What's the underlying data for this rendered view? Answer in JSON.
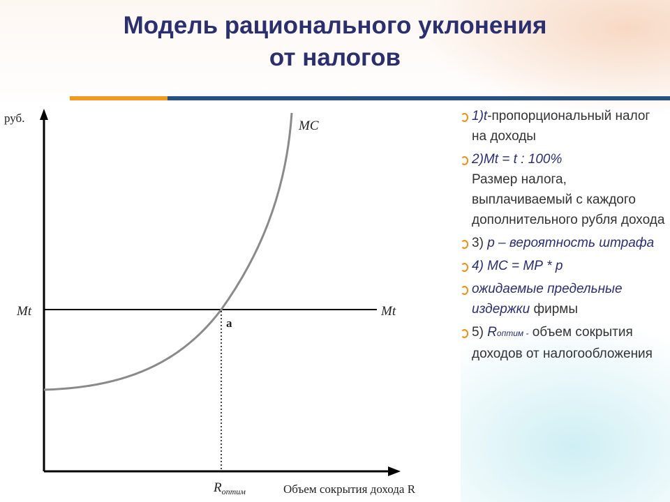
{
  "title": {
    "line1": "Модель рационального уклонения",
    "line2": "от налогов"
  },
  "colors": {
    "title": "#2b2f6e",
    "accent_orange": "#f39a1e",
    "accent_blue": "#27527f",
    "curve": "#8a8a8a"
  },
  "diagram": {
    "y_axis_label": "руб.",
    "x_axis_label": "Объем сокрытия дохода R",
    "curve_label": "MC",
    "line_label_left": "Mt",
    "line_label_right": "Mt",
    "point_label": "a",
    "x_tick_label_main": "R",
    "x_tick_label_sub": "оптим"
  },
  "bullets": {
    "b1_italic": "1)t",
    "b1_rest": "-пропорциональный налог на доходы",
    "b2_italic": "2)Mt = t : 100%",
    "b2_rest": "Размер налога, выплачиваемый с каждого дополнительного рубля дохода",
    "b3_normal": "3) ",
    "b3_italic": "р – вероятность штрафа",
    "b4_italic": "4) МС = МР * р",
    "b5_italic": "ожидаемые предельные издержки",
    "b5_rest": " фирмы",
    "b6_normal": "5) ",
    "b6_italic": "R",
    "b6_sub": "оптим -",
    "b6_rest": " объем сокрытия доходов от налогообложения"
  }
}
